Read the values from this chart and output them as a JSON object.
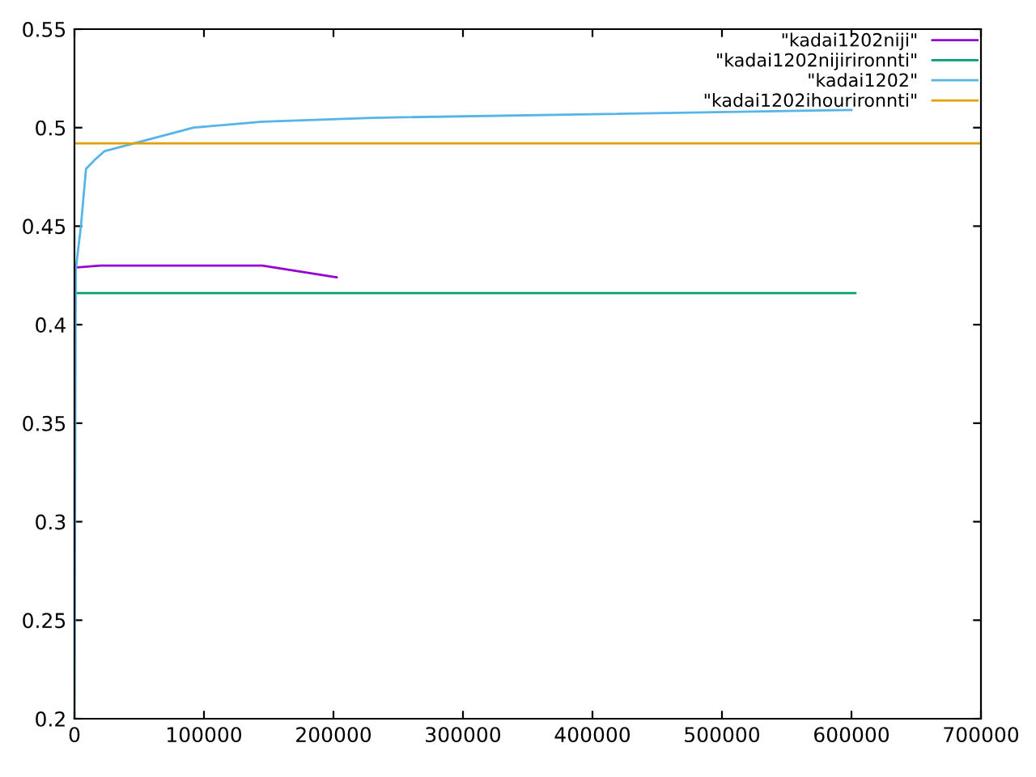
{
  "chart_data": {
    "type": "line",
    "xlim": [
      0,
      700000
    ],
    "ylim": [
      0.2,
      0.55
    ],
    "xticks": [
      0,
      100000,
      200000,
      300000,
      400000,
      500000,
      600000,
      700000
    ],
    "yticks": [
      0.2,
      0.25,
      0.3,
      0.35,
      0.4,
      0.45,
      0.5,
      0.55
    ],
    "grid": false,
    "legend": "top right",
    "marker": "none",
    "line_style": "solid",
    "series": [
      {
        "name": "\"kadai1202niji\"",
        "color": "#9400d3",
        "x": [
          500,
          20000,
          145000,
          202500
        ],
        "values": [
          0.429,
          0.43,
          0.43,
          0.424
        ]
      },
      {
        "name": "\"kadai1202nijirironnti\"",
        "color": "#009e73",
        "x": [
          0,
          603000
        ],
        "values": [
          0.416,
          0.416
        ]
      },
      {
        "name": "\"kadai1202\"",
        "color": "#56b4e9",
        "x": [
          0,
          1000,
          5000,
          8900,
          16200,
          23000,
          92000,
          145000,
          230000,
          600000
        ],
        "values": [
          0.2,
          0.428,
          0.45,
          0.479,
          0.484,
          0.488,
          0.5,
          0.503,
          0.505,
          0.509
        ]
      },
      {
        "name": "\"kadai1202ihourironnti\"",
        "color": "#e69f00",
        "x": [
          0,
          700000
        ],
        "values": [
          0.492,
          0.492
        ]
      }
    ]
  }
}
